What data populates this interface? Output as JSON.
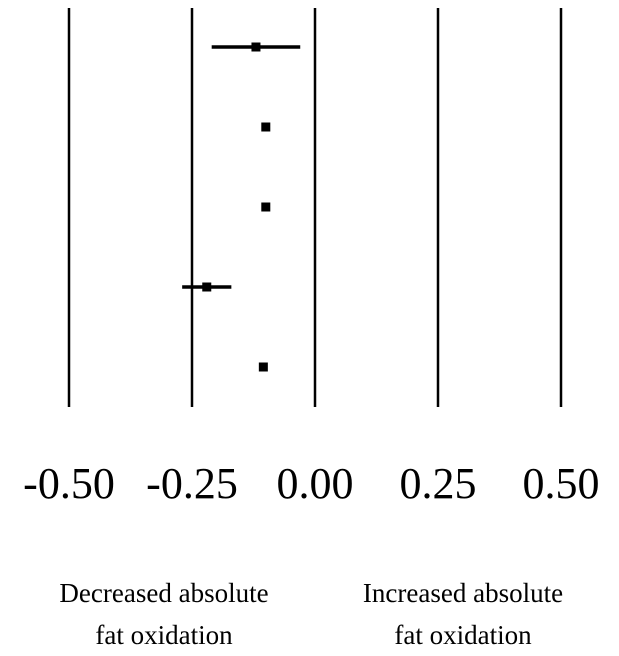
{
  "chart_data": {
    "type": "forest",
    "x_ticks": [
      -0.5,
      -0.25,
      0.0,
      0.25,
      0.5
    ],
    "x_tick_labels": [
      "-0.50",
      "-0.25",
      "0.00",
      "0.25",
      "0.50"
    ],
    "xlim": [
      -0.5,
      0.5
    ],
    "grid": true,
    "points": [
      {
        "estimate": -0.12,
        "lower": -0.21,
        "upper": -0.03
      },
      {
        "estimate": -0.1,
        "lower": -0.1,
        "upper": -0.1
      },
      {
        "estimate": -0.1,
        "lower": -0.1,
        "upper": -0.1
      },
      {
        "estimate": -0.22,
        "lower": -0.27,
        "upper": -0.17
      },
      {
        "estimate": -0.105,
        "lower": -0.11,
        "upper": -0.1
      }
    ],
    "direction_labels": {
      "left": [
        "Decreased absolute",
        "fat oxidation"
      ],
      "right": [
        "Increased absolute",
        "fat oxidation"
      ]
    },
    "colors": {
      "marks": "#000000",
      "background": "#ffffff"
    }
  }
}
